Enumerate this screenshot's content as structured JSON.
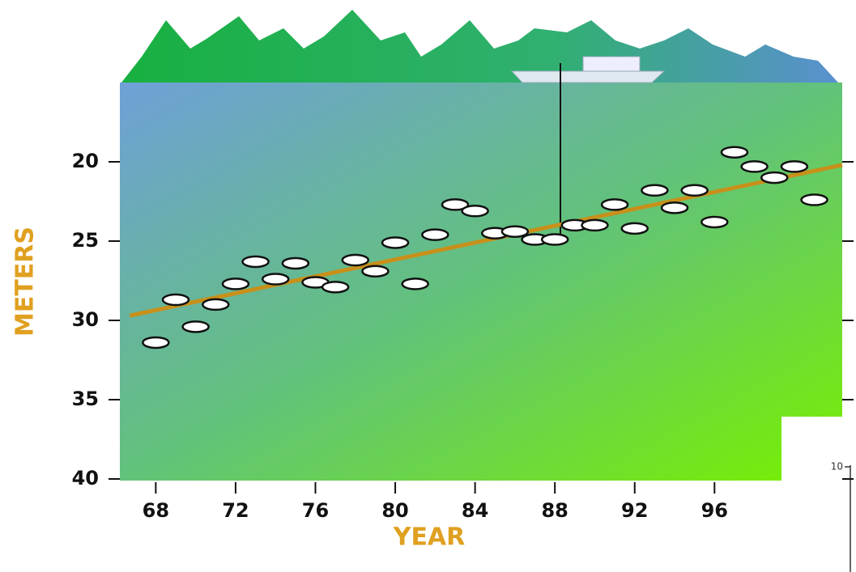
{
  "chart_data": [
    {
      "type": "scatter",
      "x_label": "YEAR",
      "y_label": "METERS",
      "xlim": [
        66.2,
        102.4
      ],
      "ylim": [
        40,
        15
      ],
      "xticks": [
        68,
        72,
        76,
        80,
        84,
        88,
        92,
        96
      ],
      "yticks": [
        20,
        25,
        30,
        35,
        40
      ],
      "series": [
        {
          "type": "scatter",
          "color": "#ffffff",
          "x": [
            68,
            69,
            70,
            71,
            72,
            73,
            74,
            75,
            76,
            77,
            78,
            79,
            80,
            81,
            82,
            83,
            84,
            85,
            86,
            87,
            88,
            89,
            90,
            91,
            92,
            93,
            94,
            95,
            96,
            97,
            98,
            99,
            100,
            101
          ],
          "values": [
            31.4,
            28.7,
            30.4,
            29.0,
            27.7,
            26.3,
            27.4,
            26.4,
            27.6,
            27.9,
            26.2,
            26.9,
            25.1,
            27.7,
            24.6,
            22.7,
            23.1,
            24.5,
            24.4,
            24.9,
            24.9,
            24.0,
            24.0,
            22.7,
            24.2,
            21.8,
            22.9,
            21.8,
            23.8,
            19.4,
            20.3,
            21.0,
            20.3,
            22.4
          ]
        },
        {
          "type": "line",
          "color": "#c8901a",
          "x": [
            66.7,
            102.4
          ],
          "values": [
            29.7,
            20.2
          ]
        }
      ]
    },
    {
      "type": "inset-axis",
      "yticks": [
        10
      ]
    }
  ]
}
